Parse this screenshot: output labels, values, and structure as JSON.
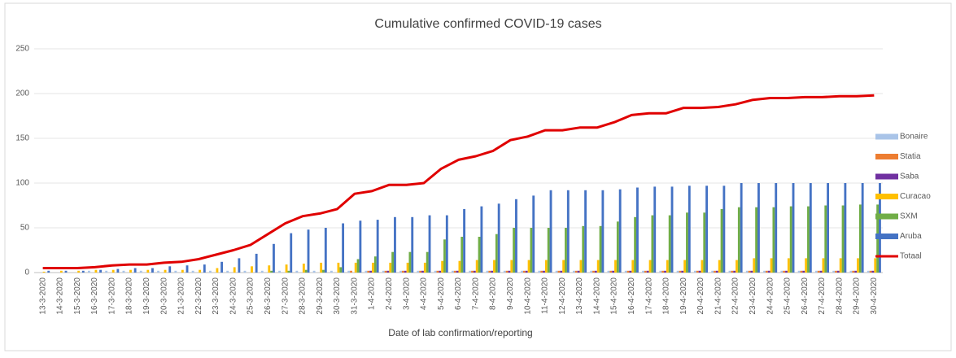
{
  "chart_data": {
    "type": "bar",
    "title": "Cumulative confirmed COVID-19 cases",
    "x_label": "Date of lab confirmation/reporting",
    "categories": [
      "13-3-2020",
      "14-3-2020",
      "15-3-2020",
      "16-3-2020",
      "17-3-2020",
      "18-3-2020",
      "19-3-2020",
      "20-3-2020",
      "21-3-2020",
      "22-3-2020",
      "23-3-2020",
      "24-3-2020",
      "25-3-2020",
      "26-3-2020",
      "27-3-2020",
      "28-3-2020",
      "29-3-2020",
      "30-3-2020",
      "31-3-2020",
      "1-4-2020",
      "2-4-2020",
      "3-4-2020",
      "4-4-2020",
      "5-4-2020",
      "6-4-2020",
      "7-4-2020",
      "8-4-2020",
      "9-4-2020",
      "10-4-2020",
      "11-4-2020",
      "12-4-2020",
      "13-4-2020",
      "14-4-2020",
      "15-4-2020",
      "16-4-2020",
      "17-4-2020",
      "18-4-2020",
      "19-4-2020",
      "20-4-2020",
      "21-4-2020",
      "22-4-2020",
      "23-4-2020",
      "24-4-2020",
      "25-4-2020",
      "26-4-2020",
      "27-4-2020",
      "28-4-2020",
      "29-4-2020",
      "30-4-2020"
    ],
    "series": [
      {
        "name": "Bonaire",
        "color": "#a9c4e8",
        "values": [
          0,
          0,
          0,
          2,
          2,
          2,
          2,
          2,
          2,
          2,
          2,
          2,
          2,
          2,
          2,
          2,
          2,
          2,
          2,
          2,
          2,
          2,
          2,
          2,
          2,
          2,
          2,
          2,
          2,
          2,
          2,
          2,
          2,
          2,
          2,
          2,
          2,
          2,
          2,
          2,
          2,
          2,
          2,
          2,
          2,
          2,
          2,
          2,
          2
        ]
      },
      {
        "name": "Statia",
        "color": "#ed7d31",
        "values": [
          0,
          0,
          0,
          0,
          0,
          0,
          0,
          0,
          0,
          0,
          0,
          0,
          0,
          0,
          0,
          0,
          0,
          0,
          2,
          2,
          2,
          2,
          2,
          2,
          2,
          2,
          2,
          2,
          2,
          2,
          2,
          2,
          2,
          2,
          2,
          2,
          2,
          2,
          2,
          2,
          2,
          2,
          2,
          2,
          2,
          2,
          2,
          2,
          2
        ]
      },
      {
        "name": "Saba",
        "color": "#7030a0",
        "values": [
          0,
          0,
          0,
          0,
          0,
          0,
          0,
          0,
          0,
          0,
          0,
          0,
          0,
          0,
          0,
          0,
          0,
          0,
          0,
          2,
          2,
          2,
          2,
          2,
          2,
          2,
          2,
          2,
          2,
          2,
          2,
          2,
          2,
          2,
          2,
          2,
          2,
          2,
          2,
          2,
          2,
          2,
          2,
          2,
          2,
          2,
          2,
          2,
          2
        ]
      },
      {
        "name": "Curacao",
        "color": "#ffc000",
        "values": [
          1,
          2,
          2,
          3,
          3,
          3,
          3,
          3,
          3,
          3,
          5,
          6,
          7,
          8,
          9,
          10,
          11,
          11,
          11,
          11,
          11,
          11,
          11,
          13,
          13,
          14,
          14,
          14,
          14,
          14,
          14,
          14,
          14,
          14,
          14,
          14,
          14,
          14,
          14,
          14,
          14,
          16,
          16,
          16,
          16,
          16,
          16,
          16,
          16
        ]
      },
      {
        "name": "SXM",
        "color": "#70ad47",
        "values": [
          0,
          0,
          0,
          0,
          0,
          0,
          0,
          0,
          0,
          0,
          0,
          0,
          0,
          2,
          2,
          3,
          3,
          6,
          15,
          18,
          23,
          23,
          23,
          37,
          40,
          40,
          43,
          50,
          50,
          50,
          50,
          52,
          52,
          57,
          62,
          64,
          64,
          67,
          67,
          71,
          73,
          73,
          73,
          74,
          74,
          75,
          75,
          76,
          76
        ]
      },
      {
        "name": "Aruba",
        "color": "#4472c4",
        "values": [
          2,
          2,
          2,
          3,
          4,
          5,
          5,
          7,
          8,
          9,
          12,
          16,
          21,
          32,
          44,
          48,
          50,
          55,
          58,
          59,
          62,
          62,
          64,
          64,
          71,
          74,
          77,
          82,
          86,
          92,
          92,
          92,
          92,
          93,
          95,
          96,
          96,
          97,
          97,
          97,
          100,
          100,
          100,
          100,
          100,
          100,
          100,
          100,
          100
        ]
      },
      {
        "name": "Totaal",
        "color": "#e00000",
        "type": "line",
        "values": [
          5,
          5,
          5,
          6,
          8,
          9,
          9,
          11,
          12,
          15,
          20,
          25,
          31,
          43,
          55,
          63,
          66,
          71,
          88,
          91,
          98,
          98,
          100,
          116,
          126,
          130,
          136,
          148,
          152,
          159,
          159,
          162,
          162,
          168,
          176,
          178,
          178,
          184,
          184,
          185,
          188,
          193,
          195,
          195,
          196,
          196,
          197,
          197,
          198
        ]
      }
    ],
    "ylim": [
      0,
      250
    ],
    "yticks": [
      0,
      50,
      100,
      150,
      200,
      250
    ],
    "grid": true,
    "legend": "right"
  }
}
